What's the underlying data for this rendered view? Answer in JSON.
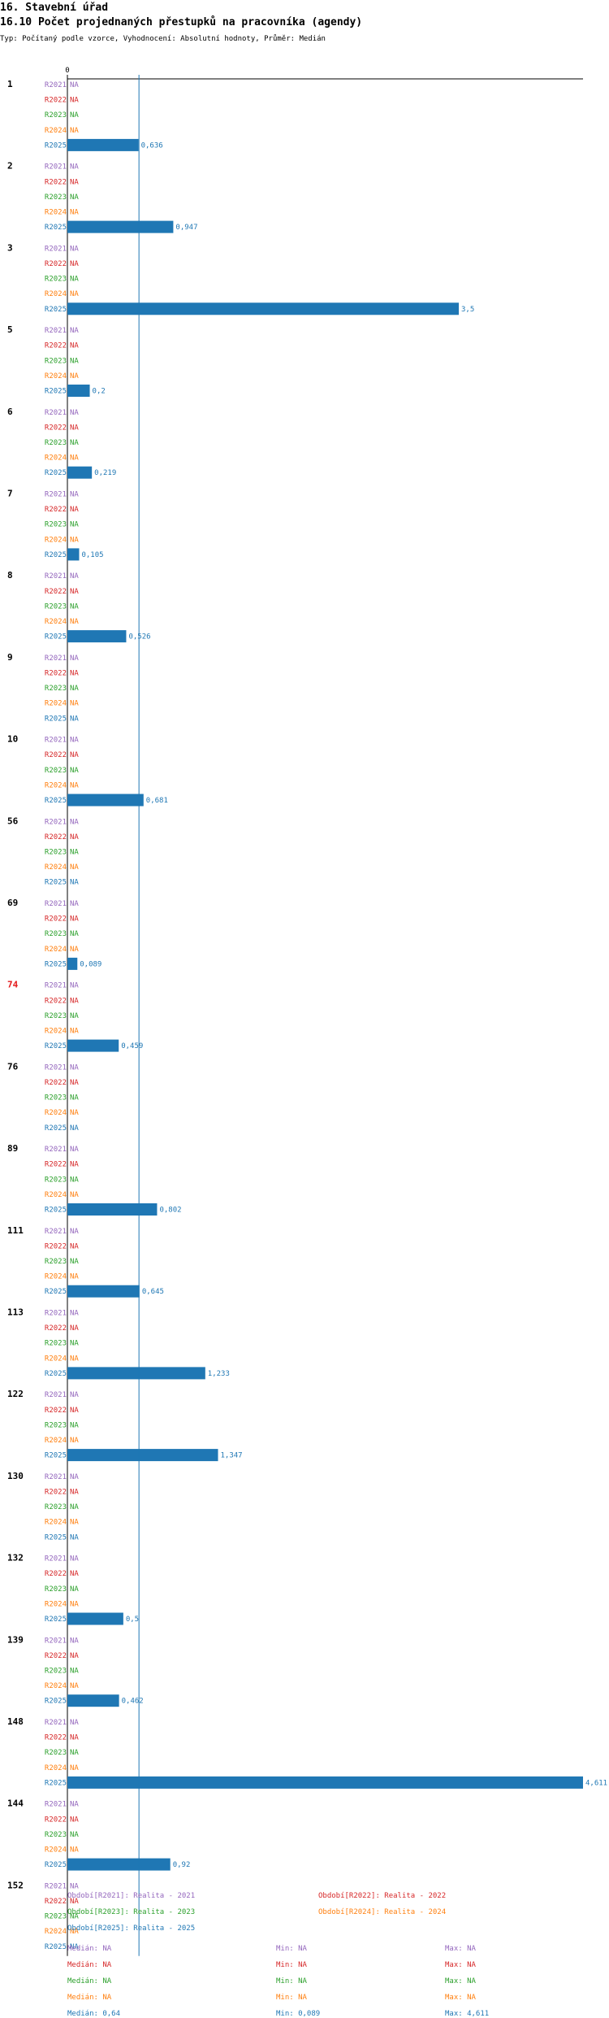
{
  "header": {
    "title": "16. Stavební úřad",
    "subtitle": "16.10 Počet projednaných přestupků na pracovníka (agendy)",
    "type_line": "Typ: Počítaný podle vzorce, Vyhodnocení: Absolutní hodnoty, Průměr: Medián"
  },
  "chart_data": {
    "type": "bar",
    "orientation": "horizontal",
    "x_tick_label": "0",
    "xlim": [
      0,
      4.611
    ],
    "reference_line": {
      "label": "Medián R2025",
      "value": 0.64
    },
    "highlight_category": "74",
    "series": [
      {
        "name": "R2021",
        "color": "#9467bd"
      },
      {
        "name": "R2022",
        "color": "#d62728"
      },
      {
        "name": "R2023",
        "color": "#2ca02c"
      },
      {
        "name": "R2024",
        "color": "#ff7f0e"
      },
      {
        "name": "R2025",
        "color": "#1f77b4"
      }
    ],
    "na_label": "NA",
    "groups": [
      {
        "category": "1",
        "values": [
          null,
          null,
          null,
          null,
          0.636
        ],
        "labels": [
          "NA",
          "NA",
          "NA",
          "NA",
          "0,636"
        ]
      },
      {
        "category": "2",
        "values": [
          null,
          null,
          null,
          null,
          0.947
        ],
        "labels": [
          "NA",
          "NA",
          "NA",
          "NA",
          "0,947"
        ]
      },
      {
        "category": "3",
        "values": [
          null,
          null,
          null,
          null,
          3.5
        ],
        "labels": [
          "NA",
          "NA",
          "NA",
          "NA",
          "3,5"
        ]
      },
      {
        "category": "5",
        "values": [
          null,
          null,
          null,
          null,
          0.2
        ],
        "labels": [
          "NA",
          "NA",
          "NA",
          "NA",
          "0,2"
        ]
      },
      {
        "category": "6",
        "values": [
          null,
          null,
          null,
          null,
          0.219
        ],
        "labels": [
          "NA",
          "NA",
          "NA",
          "NA",
          "0,219"
        ]
      },
      {
        "category": "7",
        "values": [
          null,
          null,
          null,
          null,
          0.105
        ],
        "labels": [
          "NA",
          "NA",
          "NA",
          "NA",
          "0,105"
        ]
      },
      {
        "category": "8",
        "values": [
          null,
          null,
          null,
          null,
          0.526
        ],
        "labels": [
          "NA",
          "NA",
          "NA",
          "NA",
          "0,526"
        ]
      },
      {
        "category": "9",
        "values": [
          null,
          null,
          null,
          null,
          null
        ],
        "labels": [
          "NA",
          "NA",
          "NA",
          "NA",
          "NA"
        ]
      },
      {
        "category": "10",
        "values": [
          null,
          null,
          null,
          null,
          0.681
        ],
        "labels": [
          "NA",
          "NA",
          "NA",
          "NA",
          "0,681"
        ]
      },
      {
        "category": "56",
        "values": [
          null,
          null,
          null,
          null,
          null
        ],
        "labels": [
          "NA",
          "NA",
          "NA",
          "NA",
          "NA"
        ]
      },
      {
        "category": "69",
        "values": [
          null,
          null,
          null,
          null,
          0.089
        ],
        "labels": [
          "NA",
          "NA",
          "NA",
          "NA",
          "0,089"
        ]
      },
      {
        "category": "74",
        "values": [
          null,
          null,
          null,
          null,
          0.459
        ],
        "labels": [
          "NA",
          "NA",
          "NA",
          "NA",
          "0,459"
        ]
      },
      {
        "category": "76",
        "values": [
          null,
          null,
          null,
          null,
          null
        ],
        "labels": [
          "NA",
          "NA",
          "NA",
          "NA",
          "NA"
        ]
      },
      {
        "category": "89",
        "values": [
          null,
          null,
          null,
          null,
          0.802
        ],
        "labels": [
          "NA",
          "NA",
          "NA",
          "NA",
          "0,802"
        ]
      },
      {
        "category": "111",
        "values": [
          null,
          null,
          null,
          null,
          0.645
        ],
        "labels": [
          "NA",
          "NA",
          "NA",
          "NA",
          "0,645"
        ]
      },
      {
        "category": "113",
        "values": [
          null,
          null,
          null,
          null,
          1.233
        ],
        "labels": [
          "NA",
          "NA",
          "NA",
          "NA",
          "1,233"
        ]
      },
      {
        "category": "122",
        "values": [
          null,
          null,
          null,
          null,
          1.347
        ],
        "labels": [
          "NA",
          "NA",
          "NA",
          "NA",
          "1,347"
        ]
      },
      {
        "category": "130",
        "values": [
          null,
          null,
          null,
          null,
          null
        ],
        "labels": [
          "NA",
          "NA",
          "NA",
          "NA",
          "NA"
        ]
      },
      {
        "category": "132",
        "values": [
          null,
          null,
          null,
          null,
          0.5
        ],
        "labels": [
          "NA",
          "NA",
          "NA",
          "NA",
          "0,5"
        ]
      },
      {
        "category": "139",
        "values": [
          null,
          null,
          null,
          null,
          0.462
        ],
        "labels": [
          "NA",
          "NA",
          "NA",
          "NA",
          "0,462"
        ]
      },
      {
        "category": "148",
        "values": [
          null,
          null,
          null,
          null,
          4.611
        ],
        "labels": [
          "NA",
          "NA",
          "NA",
          "NA",
          "4,611"
        ]
      },
      {
        "category": "144",
        "values": [
          null,
          null,
          null,
          null,
          0.92
        ],
        "labels": [
          "NA",
          "NA",
          "NA",
          "NA",
          "0,92"
        ]
      },
      {
        "category": "152",
        "values": [
          null,
          null,
          null,
          null,
          null
        ],
        "labels": [
          "NA",
          "NA",
          "NA",
          "NA",
          "NA"
        ]
      }
    ]
  },
  "legend": {
    "periods": [
      {
        "text": "Období[R2021]: Realita - 2021",
        "color": "#9467bd"
      },
      {
        "text": "Období[R2022]: Realita - 2022",
        "color": "#d62728"
      },
      {
        "text": "Období[R2023]: Realita - 2023",
        "color": "#2ca02c"
      },
      {
        "text": "Období[R2024]: Realita - 2024",
        "color": "#ff7f0e"
      },
      {
        "text": "Období[R2025]: Realita - 2025",
        "color": "#1f77b4"
      }
    ],
    "stats": [
      {
        "median": "Medián: NA",
        "min": "Min: NA",
        "max": "Max: NA",
        "color": "#9467bd"
      },
      {
        "median": "Medián: NA",
        "min": "Min: NA",
        "max": "Max: NA",
        "color": "#d62728"
      },
      {
        "median": "Medián: NA",
        "min": "Min: NA",
        "max": "Max: NA",
        "color": "#2ca02c"
      },
      {
        "median": "Medián: NA",
        "min": "Min: NA",
        "max": "Max: NA",
        "color": "#ff7f0e"
      },
      {
        "median": "Medián: 0,64",
        "min": "Min: 0,089",
        "max": "Max: 4,611",
        "color": "#1f77b4"
      }
    ]
  }
}
